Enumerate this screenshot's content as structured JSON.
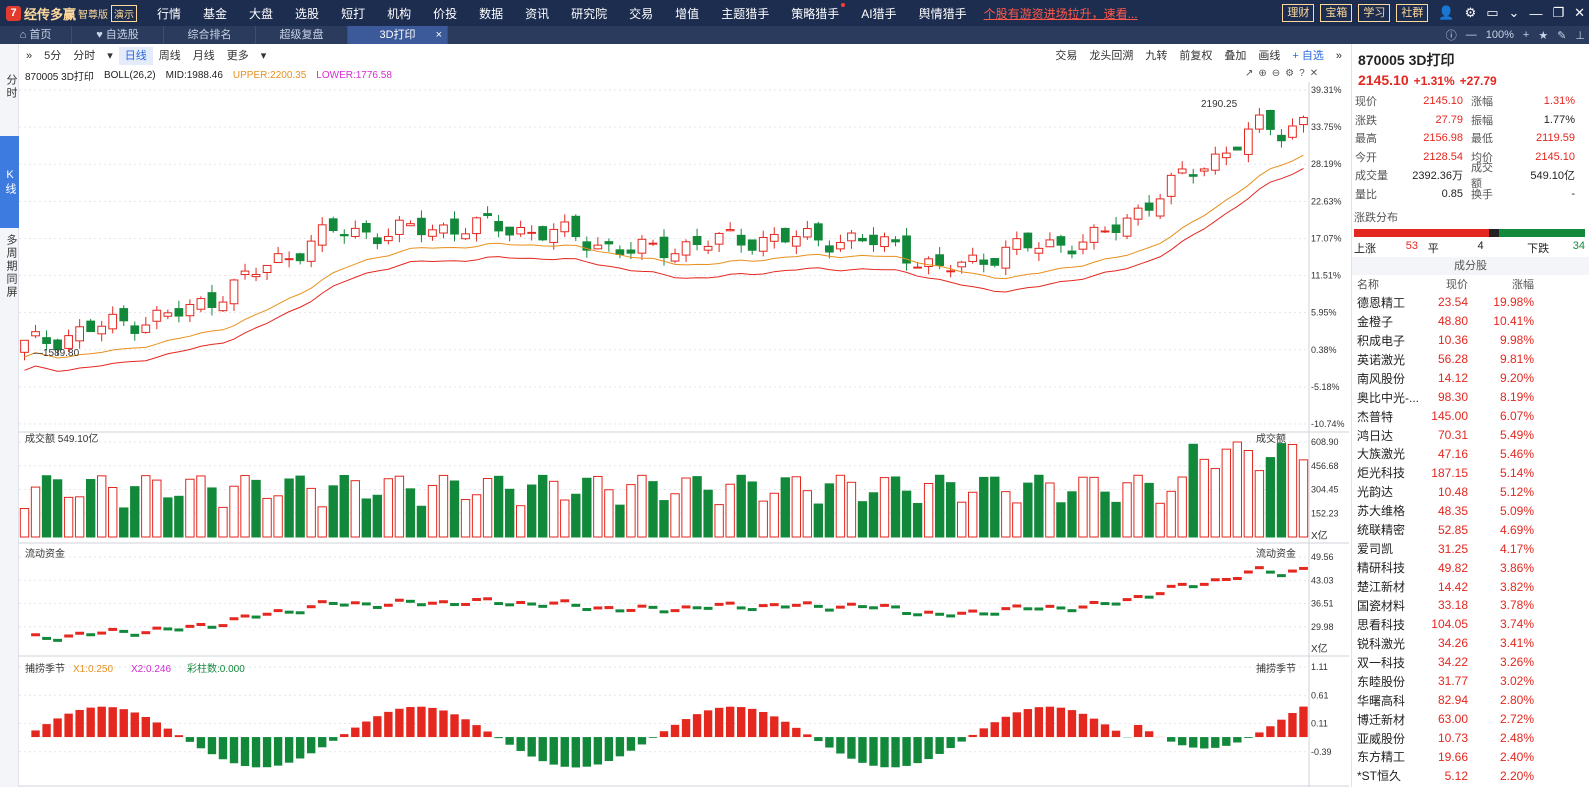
{
  "app": {
    "logo_mark": "7",
    "name": "经传多赢",
    "edition": "智尊版",
    "demo": "演示"
  },
  "nav": [
    "行情",
    "基金",
    "大盘",
    "选股",
    "短打",
    "机构",
    "价投",
    "数据",
    "资讯",
    "研究院",
    "交易",
    "增值",
    "主题猎手",
    "策略猎手",
    "AI猎手",
    "舆情猎手"
  ],
  "promo": "个股有游资进场拉升，速看...",
  "top_buttons": [
    "理财",
    "宝箱",
    "学习",
    "社群"
  ],
  "tabs": [
    {
      "label": "首页"
    },
    {
      "label": "自选股"
    },
    {
      "label": "综合排名"
    },
    {
      "label": "超级复盘"
    },
    {
      "label": "3D打印",
      "active": true
    }
  ],
  "zoom": "100%",
  "leftbar": {
    "timeshare": "分时",
    "kline": "K线",
    "multi": "多周期同屏"
  },
  "toolbar": {
    "periods": [
      "5分",
      "分时",
      "日线",
      "周线",
      "月线",
      "更多"
    ],
    "selected": "日线",
    "right": [
      "交易",
      "龙头回溯",
      "九转",
      "前复权",
      "叠加",
      "画线",
      "自选"
    ]
  },
  "chart_info": {
    "code_name": "870005 3D打印",
    "indicator": "BOLL(26,2)",
    "mid": "MID:1988.46",
    "upper": "UPPER:2200.35",
    "lower": "LOWER:1776.58"
  },
  "chart_data": [
    {
      "type": "candlestick",
      "ylim_pct": [
        -10.74,
        39.31
      ],
      "yticks": [
        "39.31%",
        "33.75%",
        "28.19%",
        "22.63%",
        "17.07%",
        "11.51%",
        "5.95%",
        "0.38%",
        "-5.18%",
        "-10.74%"
      ],
      "annotations": {
        "high": "2190.25",
        "low": "1589.80"
      }
    },
    {
      "type": "bar",
      "title": "成交额",
      "value_label": "549.10亿",
      "yticks": [
        "608.90",
        "456.68",
        "304.45",
        "152.23"
      ],
      "unit": "X亿"
    },
    {
      "type": "line",
      "title": "流动资金",
      "yticks": [
        "49.56",
        "43.03",
        "36.51",
        "29.98"
      ],
      "unit": "X亿"
    },
    {
      "type": "bar",
      "title": "捕捞季节",
      "x1": "X1:0.250",
      "x2": "X2:0.246",
      "bars": "彩柱数:0.000",
      "yticks": [
        "1.11",
        "0.61",
        "0.11",
        "-0.39"
      ]
    }
  ],
  "stock": {
    "title": "870005 3D打印",
    "price": "2145.10",
    "pct": "+1.31%",
    "chg": "+27.79"
  },
  "quotes": [
    [
      "现价",
      "2145.10",
      "涨幅",
      "1.31%"
    ],
    [
      "涨跌",
      "27.79",
      "振幅",
      "1.77%"
    ],
    [
      "最高",
      "2156.98",
      "最低",
      "2119.59"
    ],
    [
      "今开",
      "2128.54",
      "均价",
      "2145.10"
    ],
    [
      "成交量",
      "2392.36万",
      "成交额",
      "549.10亿"
    ],
    [
      "量比",
      "0.85",
      "换手",
      "-"
    ]
  ],
  "dist": {
    "label": "涨跌分布",
    "up_label": "上涨",
    "up": "53",
    "flat_label": "平",
    "flat": "4",
    "down_label": "下跌",
    "down": "34",
    "colors": {
      "up": "#e4271f",
      "flat": "#222222",
      "down": "#12893a"
    }
  },
  "components": {
    "title": "成分股",
    "headers": [
      "名称",
      "现价",
      "涨幅"
    ],
    "rows": [
      [
        "德恩精工",
        "23.54",
        "19.98%"
      ],
      [
        "金橙子",
        "48.80",
        "10.41%"
      ],
      [
        "积成电子",
        "10.36",
        "9.98%"
      ],
      [
        "英诺激光",
        "56.28",
        "9.81%"
      ],
      [
        "南风股份",
        "14.12",
        "9.20%"
      ],
      [
        "奥比中光-...",
        "98.30",
        "8.19%"
      ],
      [
        "杰普特",
        "145.00",
        "6.07%"
      ],
      [
        "鸿日达",
        "70.31",
        "5.49%"
      ],
      [
        "大族激光",
        "47.16",
        "5.46%"
      ],
      [
        "炬光科技",
        "187.15",
        "5.14%"
      ],
      [
        "光韵达",
        "10.48",
        "5.12%"
      ],
      [
        "苏大维格",
        "48.35",
        "5.09%"
      ],
      [
        "统联精密",
        "52.85",
        "4.69%"
      ],
      [
        "爱司凯",
        "31.25",
        "4.17%"
      ],
      [
        "精研科技",
        "49.82",
        "3.86%"
      ],
      [
        "楚江新材",
        "14.42",
        "3.82%"
      ],
      [
        "国瓷材料",
        "33.18",
        "3.78%"
      ],
      [
        "思看科技",
        "104.05",
        "3.74%"
      ],
      [
        "锐科激光",
        "34.26",
        "3.41%"
      ],
      [
        "双一科技",
        "34.22",
        "3.26%"
      ],
      [
        "东睦股份",
        "31.77",
        "3.02%"
      ],
      [
        "华曙高科",
        "82.94",
        "2.80%"
      ],
      [
        "博迁新材",
        "63.00",
        "2.72%"
      ],
      [
        "亚威股份",
        "10.73",
        "2.48%"
      ],
      [
        "东方精工",
        "19.66",
        "2.40%"
      ],
      [
        "*ST恒久",
        "5.12",
        "2.20%"
      ]
    ]
  },
  "colors": {
    "up": "#e4271f",
    "down": "#12893a",
    "nav_bg": "#1c2d4f",
    "accent": "#3d7be0"
  }
}
